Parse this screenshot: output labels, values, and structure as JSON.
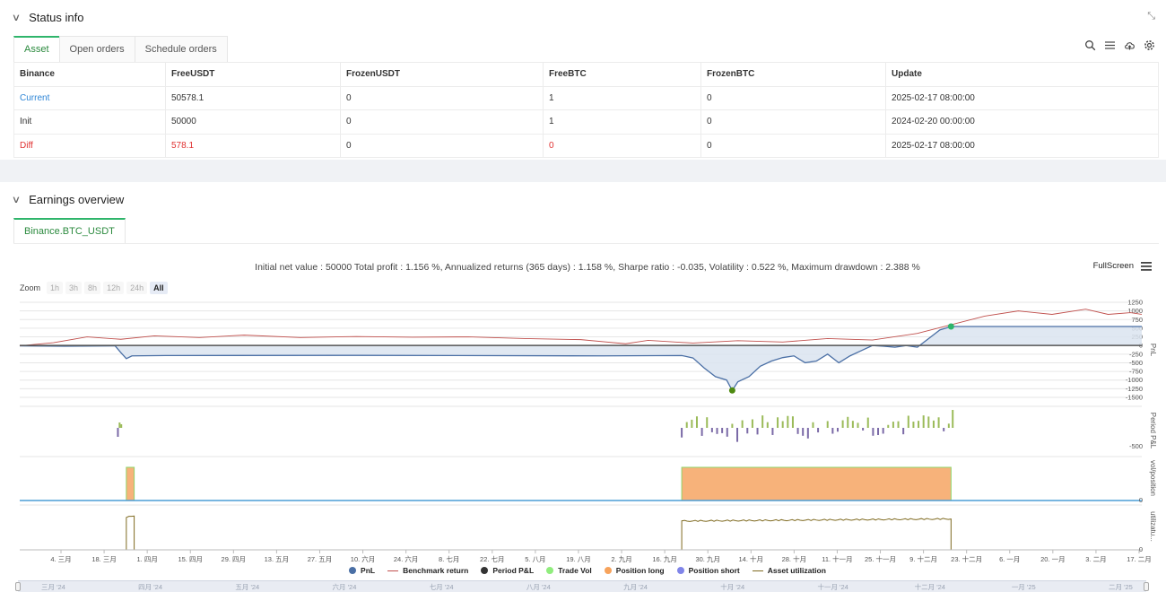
{
  "status_panel": {
    "title": "Status info",
    "tabs": [
      {
        "label": "Asset",
        "active": true
      },
      {
        "label": "Open orders",
        "active": false
      },
      {
        "label": "Schedule orders",
        "active": false
      }
    ],
    "toolbar_icons": [
      "search-icon",
      "menu-icon",
      "cloud-upload-icon",
      "gear-icon"
    ],
    "table": {
      "headers": [
        "Binance",
        "FreeUSDT",
        "FrozenUSDT",
        "FreeBTC",
        "FrozenBTC",
        "Update"
      ],
      "rows": [
        [
          "Current",
          "50578.1",
          "0",
          "1",
          "0",
          "2025-02-17 08:00:00"
        ],
        [
          "Init",
          "50000",
          "0",
          "1",
          "0",
          "2024-02-20 00:00:00"
        ],
        [
          "Diff",
          "578.1",
          "0",
          "0",
          "0",
          "2025-02-17 08:00:00"
        ]
      ]
    }
  },
  "earnings_panel": {
    "title": "Earnings overview",
    "tab_label": "Binance.BTC_USDT",
    "summary": "Initial net value : 50000 Total profit : 1.156 %, Annualized returns (365 days) : 1.158 %, Sharpe ratio : -0.035, Volatility : 0.522 %, Maximum drawdown : 2.388 %",
    "fullscreen_label": "FullScreen",
    "zoom": {
      "label": "Zoom",
      "options": [
        "1h",
        "3h",
        "8h",
        "12h",
        "24h",
        "All"
      ],
      "selected": "All"
    }
  },
  "chart_data": {
    "type": "line",
    "x_labels": [
      "4. 三月",
      "18. 三月",
      "1. 四月",
      "15. 四月",
      "29. 四月",
      "13. 五月",
      "27. 五月",
      "10. 六月",
      "24. 六月",
      "8. 七月",
      "22. 七月",
      "5. 八月",
      "19. 八月",
      "2. 九月",
      "16. 九月",
      "30. 九月",
      "14. 十月",
      "28. 十月",
      "11. 十一月",
      "25. 十一月",
      "9. 十二月",
      "23. 十二月",
      "6. 一月",
      "20. 一月",
      "3. 二月",
      "17. 二月"
    ],
    "navigator_labels": [
      "三月 '24",
      "四月 '24",
      "五月 '24",
      "六月 '24",
      "七月 '24",
      "八月 '24",
      "九月 '24",
      "十月 '24",
      "十一月 '24",
      "十二月 '24",
      "一月 '25",
      "二月 '25"
    ],
    "pnl_panel": {
      "ylabel": "PnL",
      "y_ticks": [
        1250,
        1000,
        750,
        500,
        250,
        0,
        -250,
        -500,
        -750,
        -1000,
        -1250,
        -1500
      ],
      "ylim": [
        -1500,
        1250
      ],
      "pnl_points": [
        [
          0,
          -10
        ],
        [
          0.04,
          -20
        ],
        [
          0.085,
          -10
        ],
        [
          0.09,
          -200
        ],
        [
          0.095,
          -380
        ],
        [
          0.1,
          -300
        ],
        [
          0.13,
          -290
        ],
        [
          0.3,
          -285
        ],
        [
          0.52,
          -300
        ],
        [
          0.59,
          -290
        ],
        [
          0.6,
          -360
        ],
        [
          0.61,
          -650
        ],
        [
          0.62,
          -900
        ],
        [
          0.63,
          -1000
        ],
        [
          0.635,
          -1300
        ],
        [
          0.64,
          -1050
        ],
        [
          0.65,
          -900
        ],
        [
          0.66,
          -600
        ],
        [
          0.67,
          -450
        ],
        [
          0.68,
          -350
        ],
        [
          0.69,
          -300
        ],
        [
          0.7,
          -500
        ],
        [
          0.71,
          -450
        ],
        [
          0.72,
          -250
        ],
        [
          0.73,
          -500
        ],
        [
          0.74,
          -300
        ],
        [
          0.75,
          -150
        ],
        [
          0.76,
          0
        ],
        [
          0.77,
          -20
        ],
        [
          0.78,
          -50
        ],
        [
          0.79,
          0
        ],
        [
          0.8,
          -50
        ],
        [
          0.81,
          200
        ],
        [
          0.82,
          450
        ],
        [
          0.83,
          550
        ],
        [
          1.0,
          550
        ]
      ],
      "benchmark_points": [
        [
          0,
          -10
        ],
        [
          0.03,
          80
        ],
        [
          0.06,
          250
        ],
        [
          0.09,
          180
        ],
        [
          0.12,
          280
        ],
        [
          0.16,
          230
        ],
        [
          0.2,
          300
        ],
        [
          0.25,
          230
        ],
        [
          0.3,
          260
        ],
        [
          0.35,
          240
        ],
        [
          0.4,
          250
        ],
        [
          0.45,
          200
        ],
        [
          0.5,
          170
        ],
        [
          0.54,
          50
        ],
        [
          0.56,
          150
        ],
        [
          0.6,
          70
        ],
        [
          0.64,
          140
        ],
        [
          0.68,
          100
        ],
        [
          0.72,
          200
        ],
        [
          0.76,
          160
        ],
        [
          0.8,
          350
        ],
        [
          0.83,
          600
        ],
        [
          0.86,
          850
        ],
        [
          0.89,
          1000
        ],
        [
          0.92,
          900
        ],
        [
          0.95,
          1050
        ],
        [
          0.97,
          900
        ],
        [
          0.99,
          950
        ],
        [
          1.0,
          900
        ]
      ],
      "markers": [
        {
          "x": 0.635,
          "value": -1300,
          "color": "#4d8a10"
        },
        {
          "x": 0.83,
          "value": 550,
          "color": "#2fb56b"
        }
      ]
    },
    "period_pnl_panel": {
      "ylabel": "Period P&L",
      "y_ticks": [
        -500
      ],
      "positive_color": "#9bbb59",
      "negative_color": "#7b6aa7"
    },
    "position_panel": {
      "ylabel": "vol/position",
      "y_ticks": [
        0
      ],
      "position_long": [
        {
          "start": 0.095,
          "end": 0.102,
          "level": 1
        },
        {
          "start": 0.59,
          "end": 0.83,
          "level": 1
        }
      ]
    },
    "utilization_panel": {
      "ylabel": "utilizatu...",
      "y_ticks": [
        0
      ],
      "segments": [
        {
          "start": 0.095,
          "end": 0.102,
          "level": 0.95
        },
        {
          "start": 0.59,
          "end": 0.83,
          "level": 0.85
        }
      ]
    },
    "legend": [
      {
        "name": "PnL",
        "type": "dot",
        "color": "#4a6fa5"
      },
      {
        "name": "Benchmark return",
        "type": "line",
        "color": "#c0504d"
      },
      {
        "name": "Period P&L",
        "type": "dot",
        "color": "#333333"
      },
      {
        "name": "Trade Vol",
        "type": "dot",
        "color": "#90ed7d"
      },
      {
        "name": "Position long",
        "type": "dot",
        "color": "#f7a35c"
      },
      {
        "name": "Position short",
        "type": "dot",
        "color": "#8085e9"
      },
      {
        "name": "Asset utilization",
        "type": "line",
        "color": "#7f6a20"
      }
    ]
  }
}
